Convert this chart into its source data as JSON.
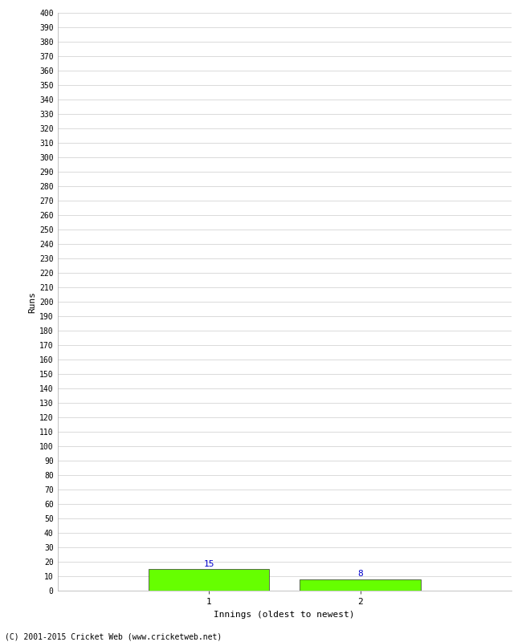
{
  "xlabel": "Innings (oldest to newest)",
  "ylabel": "Runs",
  "categories": [
    "1",
    "2"
  ],
  "values": [
    15,
    8
  ],
  "bar_color": "#66ff00",
  "bar_edge_color": "#333333",
  "ylim": [
    0,
    400
  ],
  "ytick_step": 10,
  "label_color": "#0000cc",
  "footer": "(C) 2001-2015 Cricket Web (www.cricketweb.net)",
  "background_color": "#ffffff",
  "grid_color": "#cccccc",
  "bar_positions": [
    1,
    2
  ],
  "xlim": [
    0,
    3
  ],
  "bar_width": 0.8,
  "figsize": [
    6.5,
    8.0
  ],
  "dpi": 100
}
